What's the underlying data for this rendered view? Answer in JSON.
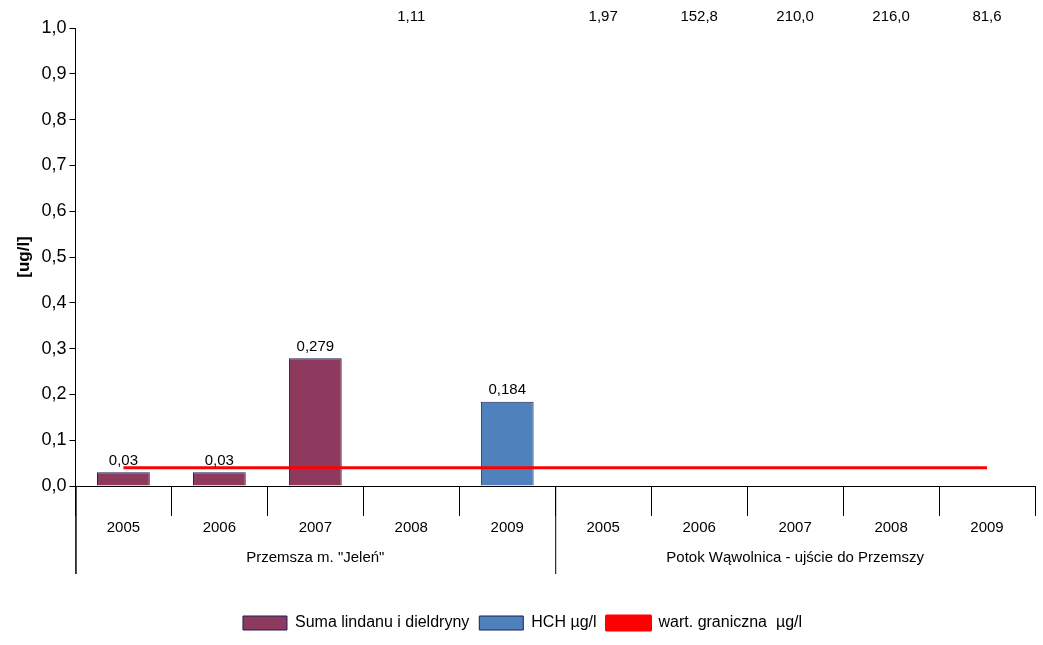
{
  "chart_data": {
    "type": "bar",
    "ylabel": "[ug/l]",
    "categories": [
      "2005",
      "2006",
      "2007",
      "2008",
      "2009",
      "2005",
      "2006",
      "2007",
      "2008",
      "2009"
    ],
    "annotations": [
      "Przemsza m. \"Jeleń\"",
      "Potok Wąwolnica - ujście do Przemszy"
    ],
    "series": [
      {
        "name": "Suma lindanu i dieldryny",
        "color": "#8e3a5e",
        "values": [
          0.03,
          0.03,
          0.279,
          null,
          null,
          null,
          null,
          null,
          null,
          null
        ],
        "value_labels": [
          "0,03",
          "0,03",
          "0,279",
          null,
          null,
          "1,97",
          "152,8",
          "210,0",
          null,
          null
        ]
      },
      {
        "name": "HCH µg/l",
        "color": "#4f81bd",
        "values": [
          null,
          null,
          null,
          null,
          0.184,
          null,
          null,
          null,
          null,
          null
        ],
        "value_labels": [
          null,
          null,
          null,
          "1,11",
          "0,184",
          null,
          null,
          null,
          "216,0",
          "81,6"
        ]
      },
      {
        "name": "wart. graniczna  µg/l",
        "type": "line",
        "color": "#ff0000",
        "values": [
          0.04,
          0.04,
          0.04,
          0.04,
          0.04,
          0.04,
          0.04,
          0.04,
          0.04,
          0.04
        ]
      }
    ],
    "ylim": [
      0,
      1
    ],
    "yticks": [
      {
        "value": 0,
        "label": "0,0"
      },
      {
        "value": 0.1,
        "label": "0,1"
      },
      {
        "value": 0.2,
        "label": "0,2"
      },
      {
        "value": 0.3,
        "label": "0,3"
      },
      {
        "value": 0.4,
        "label": "0,4"
      },
      {
        "value": 0.5,
        "label": "0,5"
      },
      {
        "value": 0.6,
        "label": "0,6"
      },
      {
        "value": 0.7,
        "label": "0,7"
      },
      {
        "value": 0.8,
        "label": "0,8"
      },
      {
        "value": 0.9,
        "label": "0,9"
      },
      {
        "value": 1,
        "label": "1,0"
      }
    ],
    "legend": "bottom",
    "grid": false,
    "marker": "none"
  }
}
